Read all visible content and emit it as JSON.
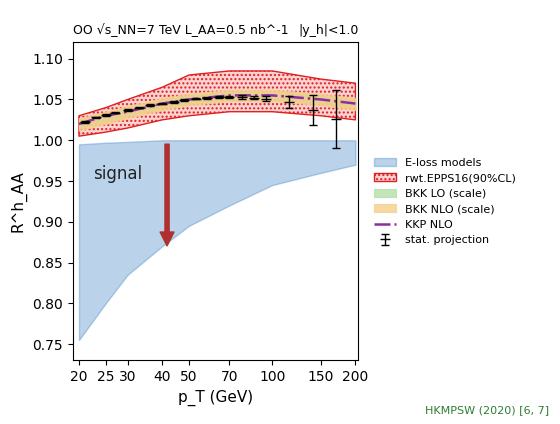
{
  "chart_data": {
    "type": "band",
    "title": "OO √s_NN=7 TeV L_AA=0.5 nb^-1",
    "subtitle": "|y_h|<1.0",
    "x_label": "p_T (GeV)",
    "y_label": "R^h_AA",
    "annotations": [
      {
        "text": "signal"
      },
      {
        "text": "HKMPSW (2020) [6, 7]"
      }
    ],
    "log": "x",
    "legend": "right",
    "xlim": [
      19,
      205
    ],
    "xticks": [
      20,
      25,
      30,
      40,
      50,
      70,
      100,
      150,
      200
    ],
    "ylim": [
      0.73,
      1.12
    ],
    "yticks": [
      {
        "value": 0.75,
        "label": "0.75"
      },
      {
        "value": 0.8,
        "label": "0.80"
      },
      {
        "value": 0.85,
        "label": "0.85"
      },
      {
        "value": 0.9,
        "label": "0.90"
      },
      {
        "value": 0.95,
        "label": "0.95"
      },
      {
        "value": 1.0,
        "label": "1.00"
      },
      {
        "value": 1.05,
        "label": "1.05"
      },
      {
        "value": 1.1,
        "label": "1.10"
      }
    ],
    "x": [
      20,
      25,
      30,
      40,
      50,
      70,
      100,
      150,
      200
    ],
    "series": [
      {
        "name": "E-loss models",
        "type": "band",
        "color": "#3a7fc4",
        "lower": [
          0.755,
          0.8,
          0.835,
          0.87,
          0.895,
          0.92,
          0.945,
          0.96,
          0.97
        ],
        "upper": [
          0.995,
          0.997,
          0.998,
          1.0,
          1.0,
          1.0,
          1.0,
          1.0,
          1.0
        ]
      },
      {
        "name": "rwt.EPPS16(90%CL)",
        "type": "band",
        "color": "#e02020",
        "lower": [
          1.005,
          1.01,
          1.015,
          1.025,
          1.03,
          1.035,
          1.035,
          1.03,
          1.025
        ],
        "upper": [
          1.03,
          1.04,
          1.05,
          1.065,
          1.08,
          1.085,
          1.085,
          1.075,
          1.07
        ]
      },
      {
        "name": "BKK LO (scale)",
        "type": "band",
        "color": "#b5dfa8",
        "lower": [
          1.015,
          1.022,
          1.03,
          1.04,
          1.045,
          1.05,
          1.05,
          1.045,
          1.04
        ],
        "upper": [
          1.025,
          1.032,
          1.04,
          1.05,
          1.055,
          1.06,
          1.06,
          1.055,
          1.05
        ]
      },
      {
        "name": "BKK NLO (scale)",
        "type": "band",
        "color": "#f6cf8a",
        "lower": [
          1.012,
          1.02,
          1.027,
          1.037,
          1.043,
          1.048,
          1.048,
          1.043,
          1.037
        ],
        "upper": [
          1.027,
          1.035,
          1.042,
          1.052,
          1.057,
          1.062,
          1.062,
          1.057,
          1.052
        ]
      },
      {
        "name": "KKP NLO",
        "type": "line",
        "color": "#8b2fa0",
        "line_style": "dashdot",
        "values": [
          1.02,
          1.03,
          1.035,
          1.045,
          1.05,
          1.055,
          1.055,
          1.05,
          1.045
        ]
      },
      {
        "name": "stat. projection",
        "type": "errorbar",
        "color": "#000000",
        "marker": "dash",
        "x": [
          21,
          23,
          25,
          27,
          30,
          33,
          36,
          40,
          44,
          48,
          53,
          58,
          64,
          70,
          78,
          86,
          95,
          115,
          140,
          170
        ],
        "values": [
          1.022,
          1.028,
          1.031,
          1.034,
          1.037,
          1.04,
          1.043,
          1.045,
          1.047,
          1.049,
          1.051,
          1.052,
          1.053,
          1.053,
          1.053,
          1.052,
          1.051,
          1.047,
          1.037,
          1.026
        ],
        "errors": [
          0.001,
          0.001,
          0.001,
          0.001,
          0.001,
          0.001,
          0.001,
          0.001,
          0.001,
          0.001,
          0.001,
          0.001,
          0.001,
          0.001,
          0.002,
          0.002,
          0.003,
          0.007,
          0.018,
          0.036
        ]
      }
    ]
  }
}
